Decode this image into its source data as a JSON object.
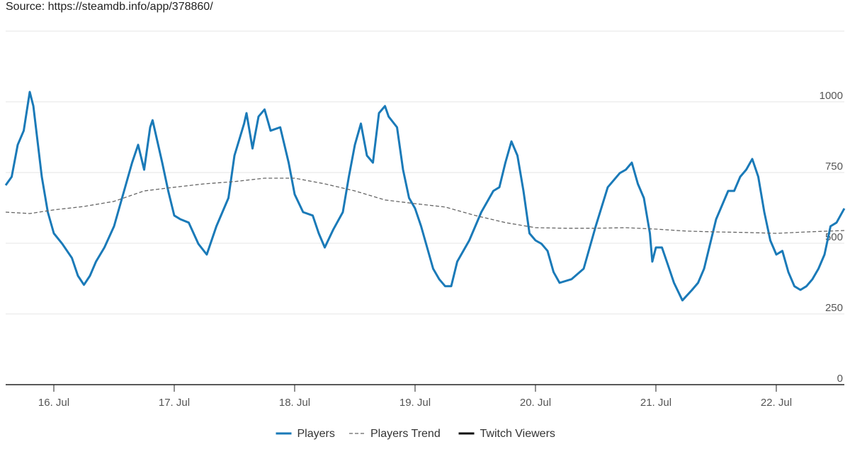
{
  "chart_data": {
    "type": "line",
    "subtitle": "Source: https://steamdb.info/app/378860/",
    "xlim": [
      15.6,
      22.565
    ],
    "xticks": [
      {
        "value": 16,
        "label": "16. Jul"
      },
      {
        "value": 17,
        "label": "17. Jul"
      },
      {
        "value": 18,
        "label": "18. Jul"
      },
      {
        "value": 19,
        "label": "19. Jul"
      },
      {
        "value": 20,
        "label": "20. Jul"
      },
      {
        "value": 21,
        "label": "21. Jul"
      },
      {
        "value": 22,
        "label": "22. Jul"
      }
    ],
    "ylim": [
      0,
      1250
    ],
    "yticks": [
      0,
      250,
      500,
      750,
      1000,
      {
        "value": 1250,
        "label": ""
      }
    ],
    "grid": true,
    "legend": "bottom",
    "series": [
      {
        "name": "Players",
        "color": "#1a7ab8",
        "dash": false,
        "x": [
          15.6,
          15.65,
          15.7,
          15.75,
          15.8,
          15.83,
          15.9,
          15.95,
          16.0,
          16.07,
          16.15,
          16.2,
          16.25,
          16.3,
          16.35,
          16.42,
          16.5,
          16.6,
          16.65,
          16.7,
          16.75,
          16.8,
          16.82,
          16.9,
          16.95,
          17.0,
          17.05,
          17.12,
          17.2,
          17.27,
          17.35,
          17.45,
          17.5,
          17.58,
          17.6,
          17.65,
          17.7,
          17.75,
          17.8,
          17.88,
          17.95,
          18.0,
          18.07,
          18.15,
          18.2,
          18.25,
          18.32,
          18.4,
          18.45,
          18.5,
          18.55,
          18.6,
          18.65,
          18.7,
          18.75,
          18.78,
          18.85,
          18.9,
          18.95,
          19.0,
          19.05,
          19.1,
          19.15,
          19.2,
          19.25,
          19.3,
          19.35,
          19.45,
          19.55,
          19.65,
          19.7,
          19.75,
          19.8,
          19.85,
          19.9,
          19.95,
          20.0,
          20.05,
          20.1,
          20.15,
          20.2,
          20.3,
          20.4,
          20.5,
          20.6,
          20.7,
          20.75,
          20.8,
          20.85,
          20.9,
          20.95,
          20.97,
          21.0,
          21.05,
          21.1,
          21.15,
          21.22,
          21.3,
          21.35,
          21.4,
          21.5,
          21.6,
          21.65,
          21.7,
          21.75,
          21.8,
          21.85,
          21.9,
          21.95,
          22.0,
          22.05,
          22.1,
          22.15,
          22.2,
          22.25,
          22.3,
          22.35,
          22.4,
          22.45,
          22.5,
          22.565
        ],
        "values": [
          705,
          735,
          848,
          898,
          1035,
          985,
          735,
          610,
          535,
          498,
          448,
          385,
          353,
          385,
          435,
          485,
          560,
          710,
          785,
          848,
          760,
          910,
          935,
          785,
          685,
          598,
          585,
          573,
          498,
          460,
          560,
          660,
          810,
          923,
          960,
          835,
          948,
          973,
          898,
          910,
          785,
          673,
          610,
          598,
          535,
          485,
          548,
          610,
          735,
          848,
          923,
          810,
          785,
          960,
          985,
          948,
          910,
          760,
          660,
          623,
          560,
          485,
          410,
          373,
          348,
          348,
          435,
          510,
          610,
          685,
          698,
          785,
          860,
          810,
          685,
          535,
          510,
          498,
          473,
          398,
          360,
          373,
          410,
          560,
          698,
          748,
          760,
          785,
          710,
          660,
          535,
          435,
          485,
          485,
          423,
          360,
          298,
          335,
          360,
          410,
          585,
          685,
          685,
          735,
          760,
          798,
          735,
          610,
          510,
          460,
          473,
          398,
          348,
          335,
          348,
          373,
          410,
          460,
          560,
          573,
          623
        ]
      },
      {
        "name": "Players Trend",
        "color": "#666666",
        "dash": true,
        "x": [
          15.6,
          15.8,
          16.0,
          16.25,
          16.5,
          16.75,
          17.0,
          17.25,
          17.5,
          17.75,
          18.0,
          18.25,
          18.5,
          18.75,
          19.0,
          19.25,
          19.5,
          19.75,
          20.0,
          20.25,
          20.5,
          20.75,
          21.0,
          21.25,
          21.5,
          21.75,
          22.0,
          22.25,
          22.565
        ],
        "values": [
          610,
          605,
          618,
          630,
          648,
          685,
          698,
          710,
          718,
          730,
          730,
          710,
          685,
          653,
          640,
          628,
          598,
          573,
          555,
          553,
          553,
          555,
          550,
          543,
          540,
          538,
          535,
          540,
          545
        ]
      },
      {
        "name": "Twitch Viewers",
        "color": "#111111",
        "dash": false,
        "x": [],
        "values": []
      }
    ]
  }
}
